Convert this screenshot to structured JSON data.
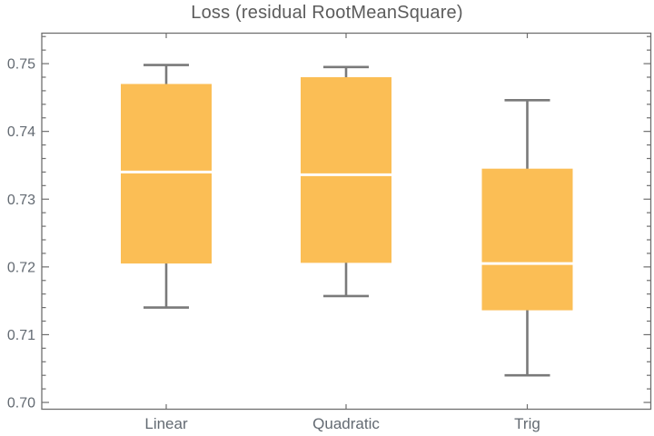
{
  "chart_data": {
    "type": "boxplot",
    "title": "Loss (residual RootMeanSquare)",
    "categories": [
      "Linear",
      "Quadratic",
      "Trig"
    ],
    "series": [
      {
        "name": "Linear",
        "min": 0.714,
        "q1": 0.7205,
        "median": 0.734,
        "q3": 0.747,
        "max": 0.7498
      },
      {
        "name": "Quadratic",
        "min": 0.7157,
        "q1": 0.7206,
        "median": 0.7336,
        "q3": 0.748,
        "max": 0.7495
      },
      {
        "name": "Trig",
        "min": 0.704,
        "q1": 0.7136,
        "median": 0.7205,
        "q3": 0.7345,
        "max": 0.7446
      }
    ],
    "ylim": [
      0.699,
      0.7545
    ],
    "y_major_ticks": [
      0.7,
      0.71,
      0.72,
      0.73,
      0.74,
      0.75
    ],
    "y_tick_labels": [
      "0.70",
      "0.71",
      "0.72",
      "0.73",
      "0.74",
      "0.75"
    ],
    "y_minor_step": 0.002,
    "grid": false,
    "legend": null,
    "colors": {
      "box_fill": "#FBBE55",
      "median_line": "#FFFFFF",
      "whisker": "#7A7A7A",
      "frame": "#6F6F6F",
      "tick_label": "#636A72",
      "title": "#5C5C5C",
      "background": "#FFFFFF"
    }
  }
}
